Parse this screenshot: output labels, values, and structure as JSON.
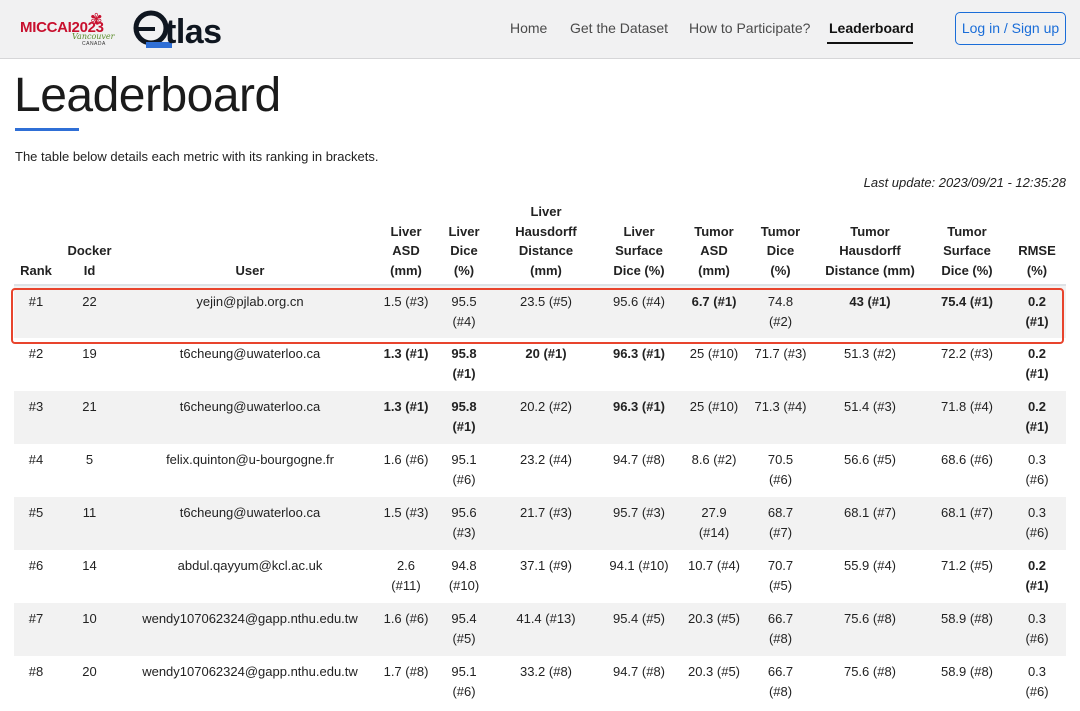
{
  "nav": {
    "miccai_text": "MICCAI2023",
    "miccai_script": "Vancouver",
    "miccai_country": "CANADA",
    "atlas_text": "tlas",
    "links": [
      "Home",
      "Get the Dataset",
      "How to Participate?",
      "Leaderboard"
    ],
    "active": "Leaderboard",
    "login": "Log in / Sign up"
  },
  "page": {
    "title": "Leaderboard",
    "intro": "The table below details each metric with its ranking in brackets.",
    "last_update": "Last update: 2023/09/21 - 12:35:28"
  },
  "table": {
    "headers": [
      [
        "Rank"
      ],
      [
        "Docker",
        "Id"
      ],
      [
        "User"
      ],
      [
        "Liver",
        "ASD",
        "(mm)"
      ],
      [
        "Liver",
        "Dice",
        "(%)"
      ],
      [
        "Liver",
        "Hausdorff",
        "Distance",
        "(mm)"
      ],
      [
        "Liver",
        "Surface",
        "Dice (%)"
      ],
      [
        "Tumor",
        "ASD",
        "(mm)"
      ],
      [
        "Tumor",
        "Dice",
        "(%)"
      ],
      [
        "Tumor",
        "Hausdorff",
        "Distance (mm)"
      ],
      [
        "Tumor",
        "Surface",
        "Dice (%)"
      ],
      [
        "RMSE",
        "(%)"
      ]
    ],
    "rows": [
      {
        "rank": "#1",
        "docker": "22",
        "user": "yejin@pjlab.org.cn",
        "liver_asd": "1.5 (#3)",
        "liver_dice": [
          "95.5",
          "(#4)"
        ],
        "liver_hd": "23.5 (#5)",
        "liver_sd": "95.6 (#4)",
        "tumor_asd": [
          "6.7 (#1)"
        ],
        "tumor_dice": [
          "74.8",
          "(#2)"
        ],
        "tumor_hd": "43 (#1)",
        "tumor_sd": "75.4 (#1)",
        "rmse": [
          "0.2",
          "(#1)"
        ]
      },
      {
        "rank": "#2",
        "docker": "19",
        "user": "t6cheung@uwaterloo.ca",
        "liver_asd": "1.3 (#1)",
        "liver_dice": [
          "95.8",
          "(#1)"
        ],
        "liver_hd": "20 (#1)",
        "liver_sd": "96.3 (#1)",
        "tumor_asd": [
          "25 (#10)"
        ],
        "tumor_dice": [
          "71.7 (#3)"
        ],
        "tumor_hd": "51.3 (#2)",
        "tumor_sd": "72.2 (#3)",
        "rmse": [
          "0.2",
          "(#1)"
        ]
      },
      {
        "rank": "#3",
        "docker": "21",
        "user": "t6cheung@uwaterloo.ca",
        "liver_asd": "1.3 (#1)",
        "liver_dice": [
          "95.8",
          "(#1)"
        ],
        "liver_hd": "20.2 (#2)",
        "liver_sd": "96.3 (#1)",
        "tumor_asd": [
          "25 (#10)"
        ],
        "tumor_dice": [
          "71.3 (#4)"
        ],
        "tumor_hd": "51.4 (#3)",
        "tumor_sd": "71.8 (#4)",
        "rmse": [
          "0.2",
          "(#1)"
        ]
      },
      {
        "rank": "#4",
        "docker": "5",
        "user": "felix.quinton@u-bourgogne.fr",
        "liver_asd": "1.6 (#6)",
        "liver_dice": [
          "95.1",
          "(#6)"
        ],
        "liver_hd": "23.2 (#4)",
        "liver_sd": "94.7 (#8)",
        "tumor_asd": [
          "8.6 (#2)"
        ],
        "tumor_dice": [
          "70.5",
          "(#6)"
        ],
        "tumor_hd": "56.6 (#5)",
        "tumor_sd": "68.6 (#6)",
        "rmse": [
          "0.3",
          "(#6)"
        ]
      },
      {
        "rank": "#5",
        "docker": "11",
        "user": "t6cheung@uwaterloo.ca",
        "liver_asd": "1.5 (#3)",
        "liver_dice": [
          "95.6",
          "(#3)"
        ],
        "liver_hd": "21.7 (#3)",
        "liver_sd": "95.7 (#3)",
        "tumor_asd": [
          "27.9",
          "(#14)"
        ],
        "tumor_dice": [
          "68.7",
          "(#7)"
        ],
        "tumor_hd": "68.1 (#7)",
        "tumor_sd": "68.1 (#7)",
        "rmse": [
          "0.3",
          "(#6)"
        ]
      },
      {
        "rank": "#6",
        "docker": "14",
        "user": "abdul.qayyum@kcl.ac.uk",
        "liver_asd": [
          "2.6",
          "(#11)"
        ],
        "liver_dice": [
          "94.8",
          "(#10)"
        ],
        "liver_hd": "37.1 (#9)",
        "liver_sd": "94.1 (#10)",
        "tumor_asd": [
          "10.7 (#4)"
        ],
        "tumor_dice": [
          "70.7",
          "(#5)"
        ],
        "tumor_hd": "55.9 (#4)",
        "tumor_sd": "71.2 (#5)",
        "rmse": [
          "0.2",
          "(#1)"
        ]
      },
      {
        "rank": "#7",
        "docker": "10",
        "user": "wendy107062324@gapp.nthu.edu.tw",
        "liver_asd": "1.6 (#6)",
        "liver_dice": [
          "95.4",
          "(#5)"
        ],
        "liver_hd": "41.4 (#13)",
        "liver_sd": "95.4 (#5)",
        "tumor_asd": [
          "20.3 (#5)"
        ],
        "tumor_dice": [
          "66.7",
          "(#8)"
        ],
        "tumor_hd": "75.6 (#8)",
        "tumor_sd": "58.9 (#8)",
        "rmse": [
          "0.3",
          "(#6)"
        ]
      },
      {
        "rank": "#8",
        "docker": "20",
        "user": "wendy107062324@gapp.nthu.edu.tw",
        "liver_asd": "1.7 (#8)",
        "liver_dice": [
          "95.1",
          "(#6)"
        ],
        "liver_hd": "33.2 (#8)",
        "liver_sd": "94.7 (#8)",
        "tumor_asd": [
          "20.3 (#5)"
        ],
        "tumor_dice": [
          "66.7",
          "(#8)"
        ],
        "tumor_hd": "75.6 (#8)",
        "tumor_sd": "58.9 (#8)",
        "rmse": [
          "0.3",
          "(#6)"
        ]
      }
    ],
    "best_cells": {
      "0": [
        "tumor_asd",
        "tumor_hd",
        "tumor_sd",
        "rmse"
      ],
      "1": [
        "liver_asd",
        "liver_dice",
        "liver_hd",
        "liver_sd",
        "rmse"
      ],
      "2": [
        "liver_asd",
        "liver_dice",
        "liver_sd",
        "rmse"
      ],
      "5": [
        "rmse"
      ]
    }
  },
  "colors": {
    "best": "#3a8a4a",
    "highlight_border": "#e8442d",
    "accent": "#2f6fd6",
    "link": "#1a6dd8"
  }
}
